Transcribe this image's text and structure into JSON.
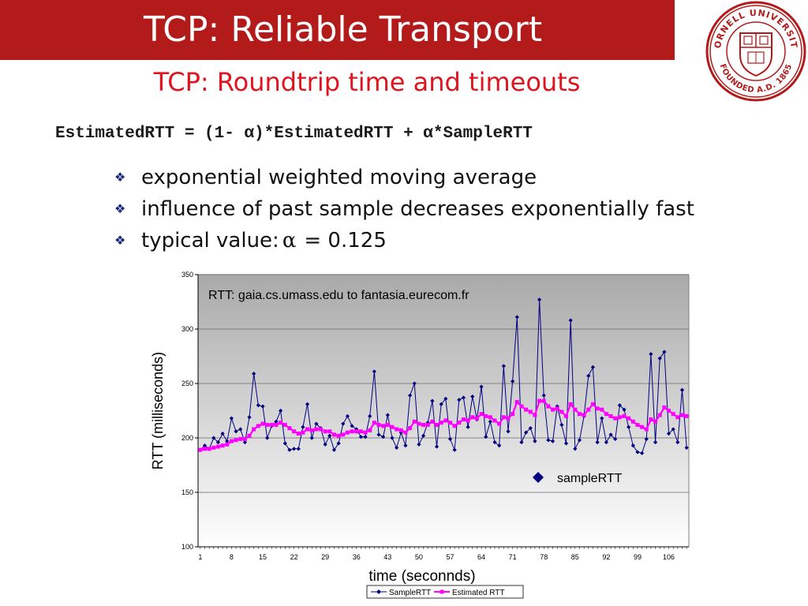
{
  "header": {
    "title": "TCP: Reliable Transport",
    "brand_color": "#b31b1b",
    "seal": {
      "arc_top": "CORNELL UNIVERSITY",
      "arc_bottom": "FOUNDED A.D. 1865"
    }
  },
  "slide": {
    "subtitle": "TCP: Roundtrip time and timeouts",
    "formula": "EstimatedRTT = (1- α)*EstimatedRTT + α*SampleRTT",
    "bullet_icon": "diamond-bullet-icon",
    "bullets": [
      {
        "text": "exponential weighted moving average"
      },
      {
        "text": "influence of past sample decreases exponentially fast"
      },
      {
        "text": "typical value:",
        "symbol": "α",
        "rest": "= 0.125"
      }
    ]
  },
  "chart_data": {
    "type": "line",
    "title": "RTT: gaia.cs.umass.edu to fantasia.eurecom.fr",
    "xlabel": "time (seconnds)",
    "ylabel": "RTT (milliseconds)",
    "ylim": [
      100,
      350
    ],
    "y_ticks": [
      "100",
      "150",
      "200",
      "250",
      "300",
      "350"
    ],
    "x_ticks": [
      {
        "x": 1,
        "label": "1"
      },
      {
        "x": 8,
        "label": "8"
      },
      {
        "x": 15,
        "label": "15"
      },
      {
        "x": 22,
        "label": "22"
      },
      {
        "x": 29,
        "label": "29"
      },
      {
        "x": 36,
        "label": "36"
      },
      {
        "x": 43,
        "label": "43"
      },
      {
        "x": 50,
        "label": "50"
      },
      {
        "x": 57,
        "label": "57"
      },
      {
        "x": 64,
        "label": "64"
      },
      {
        "x": 71,
        "label": "71"
      },
      {
        "x": 78,
        "label": "78"
      },
      {
        "x": 85,
        "label": "85"
      },
      {
        "x": 92,
        "label": "92"
      },
      {
        "x": 99,
        "label": "99"
      },
      {
        "x": 106,
        "label": "106"
      }
    ],
    "grid": true,
    "plot_bg": "gradient gray",
    "inline_legend": {
      "label": "sampleRTT",
      "marker": "diamond",
      "color": "#000080"
    },
    "legend": {
      "placement": "bottom-center"
    },
    "series": [
      {
        "name": "SampleRTT",
        "color": "#000080",
        "marker": "diamond",
        "values": [
          189,
          193,
          190,
          200,
          196,
          204,
          197,
          218,
          206,
          208,
          196,
          219,
          259,
          230,
          229,
          200,
          211,
          215,
          225,
          195,
          189,
          190,
          190,
          210,
          231,
          200,
          213,
          209,
          194,
          202,
          189,
          195,
          213,
          220,
          211,
          208,
          201,
          201,
          220,
          261,
          203,
          201,
          221,
          200,
          191,
          205,
          193,
          239,
          250,
          194,
          202,
          214,
          234,
          192,
          231,
          236,
          199,
          189,
          235,
          237,
          210,
          238,
          217,
          247,
          201,
          215,
          196,
          193,
          266,
          206,
          252,
          311,
          196,
          205,
          209,
          197,
          327,
          239,
          198,
          197,
          229,
          212,
          195,
          308,
          190,
          198,
          220,
          257,
          265,
          196,
          218,
          196,
          203,
          199,
          230,
          226,
          210,
          193,
          187,
          186,
          199,
          277,
          196,
          273,
          279,
          204,
          208,
          196,
          244,
          191
        ]
      },
      {
        "name": "Estimated RTT",
        "color": "#ff00ff",
        "marker": "square",
        "values": [
          189,
          190,
          190,
          191,
          192,
          193,
          194,
          197,
          198,
          199,
          199,
          202,
          208,
          211,
          213,
          212,
          212,
          212,
          214,
          212,
          209,
          206,
          204,
          205,
          208,
          207,
          208,
          208,
          206,
          206,
          203,
          202,
          203,
          205,
          206,
          206,
          206,
          205,
          207,
          214,
          212,
          211,
          212,
          210,
          208,
          207,
          205,
          209,
          215,
          213,
          212,
          212,
          215,
          212,
          214,
          216,
          214,
          211,
          214,
          217,
          216,
          219,
          218,
          222,
          220,
          219,
          216,
          213,
          219,
          218,
          222,
          233,
          229,
          226,
          224,
          221,
          234,
          234,
          229,
          226,
          227,
          224,
          220,
          231,
          226,
          222,
          221,
          226,
          231,
          227,
          226,
          222,
          220,
          218,
          219,
          220,
          218,
          215,
          212,
          210,
          208,
          217,
          215,
          221,
          228,
          225,
          222,
          219,
          221,
          220
        ]
      }
    ]
  }
}
